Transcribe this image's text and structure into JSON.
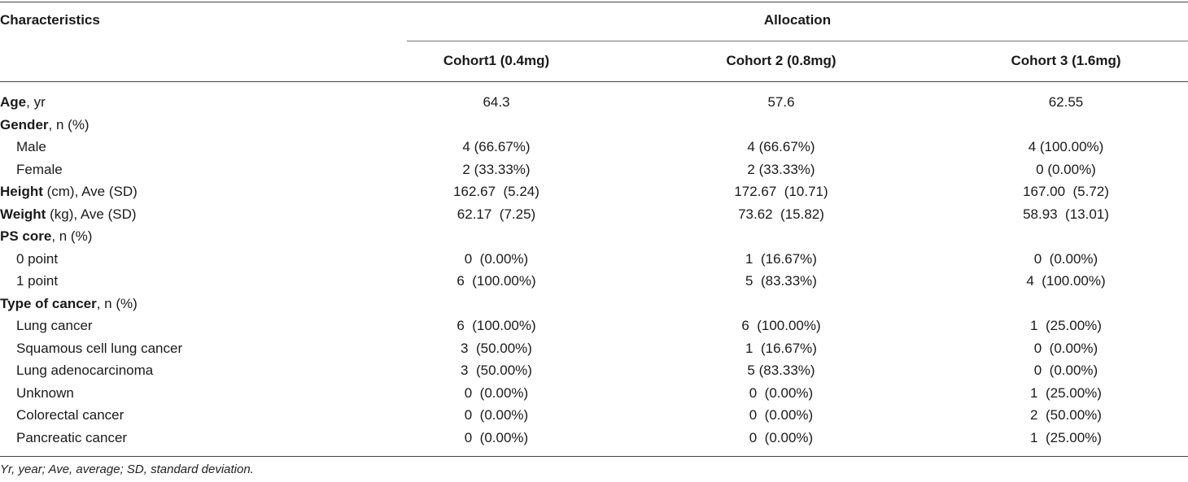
{
  "header": {
    "characteristics": "Characteristics",
    "allocation": "Allocation",
    "cohorts": [
      "Cohort1 (0.4mg)",
      "Cohort 2 (0.8mg)",
      "Cohort 3 (1.6mg)"
    ]
  },
  "rows": [
    {
      "bold": "Age",
      "rest": ", yr",
      "sub": false,
      "values": [
        "64.3",
        "57.6",
        "62.55"
      ]
    },
    {
      "bold": "Gender",
      "rest": ", n (%)",
      "sub": false,
      "values": [
        "",
        "",
        ""
      ]
    },
    {
      "bold": "",
      "rest": "Male",
      "sub": true,
      "values": [
        "4 (66.67%)",
        "4 (66.67%)",
        "4 (100.00%)"
      ]
    },
    {
      "bold": "",
      "rest": "Female",
      "sub": true,
      "values": [
        "2 (33.33%)",
        "2 (33.33%)",
        "0 (0.00%)"
      ]
    },
    {
      "bold": "Height",
      "rest": " (cm), Ave (SD)",
      "sub": false,
      "values": [
        "162.67  (5.24)",
        "172.67  (10.71)",
        "167.00  (5.72)"
      ]
    },
    {
      "bold": "Weight",
      "rest": " (kg), Ave (SD)",
      "sub": false,
      "values": [
        "62.17  (7.25)",
        "73.62  (15.82)",
        "58.93  (13.01)"
      ]
    },
    {
      "bold": "PS core",
      "rest": ", n  (%)",
      "sub": false,
      "values": [
        "",
        "",
        ""
      ]
    },
    {
      "bold": "",
      "rest": "0 point",
      "sub": true,
      "values": [
        "0  (0.00%)",
        "1  (16.67%)",
        "0  (0.00%)"
      ]
    },
    {
      "bold": "",
      "rest": "1 point",
      "sub": true,
      "values": [
        "6  (100.00%)",
        "5  (83.33%)",
        "4  (100.00%)"
      ]
    },
    {
      "bold": "Type of cancer",
      "rest": ", n (%)",
      "sub": false,
      "values": [
        "",
        "",
        ""
      ]
    },
    {
      "bold": "",
      "rest": "Lung cancer",
      "sub": true,
      "values": [
        "6  (100.00%)",
        "6  (100.00%)",
        "1  (25.00%)"
      ]
    },
    {
      "bold": "",
      "rest": "Squamous cell lung cancer",
      "sub": true,
      "values": [
        "3  (50.00%)",
        "1  (16.67%)",
        "0  (0.00%)"
      ]
    },
    {
      "bold": "",
      "rest": "Lung adenocarcinoma",
      "sub": true,
      "values": [
        "3  (50.00%)",
        "5 (83.33%)",
        "0  (0.00%)"
      ]
    },
    {
      "bold": "",
      "rest": "Unknown",
      "sub": true,
      "values": [
        "0  (0.00%)",
        "0  (0.00%)",
        "1  (25.00%)"
      ]
    },
    {
      "bold": "",
      "rest": "Colorectal cancer",
      "sub": true,
      "values": [
        "0  (0.00%)",
        "0  (0.00%)",
        "2  (50.00%)"
      ]
    },
    {
      "bold": "",
      "rest": "Pancreatic cancer",
      "sub": true,
      "values": [
        "0  (0.00%)",
        "0  (0.00%)",
        "1  (25.00%)"
      ]
    }
  ],
  "footnote": "Yr, year; Ave, average; SD, standard deviation."
}
